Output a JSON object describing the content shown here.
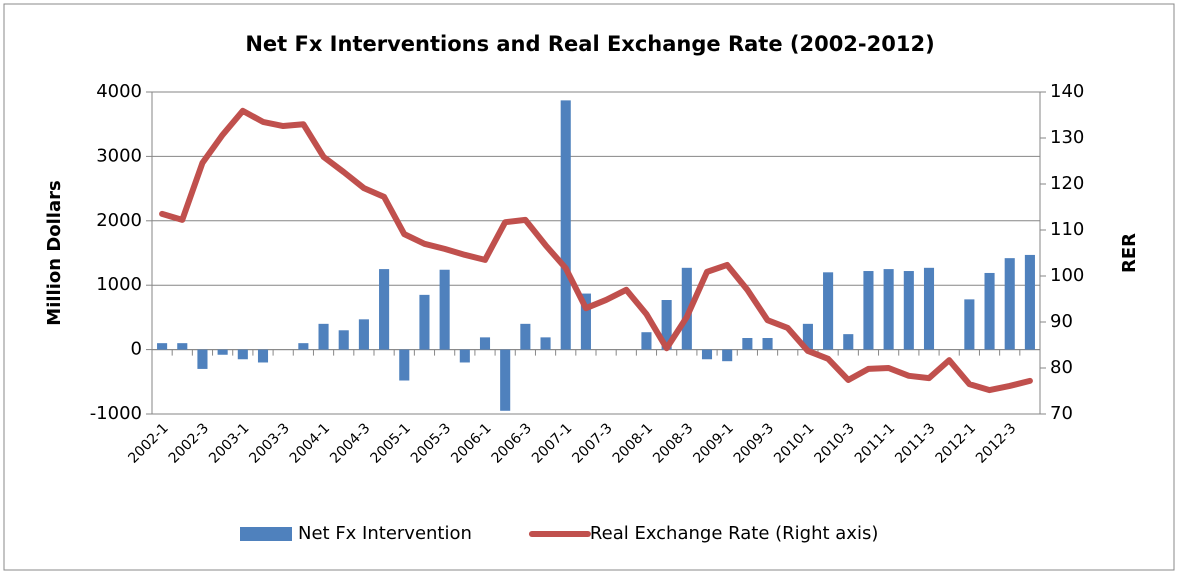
{
  "chart_data": {
    "type": "bar-line",
    "title": "Net Fx Interventions and Real Exchange Rate (2002-2012)",
    "y_label": "Million Dollars",
    "y2_label": "RER",
    "categories": [
      "2002-1",
      null,
      "2002-3",
      null,
      "2003-1",
      null,
      "2003-3",
      null,
      "2004-1",
      null,
      "2004-3",
      null,
      "2005-1",
      null,
      "2005-3",
      null,
      "2006-1",
      null,
      "2006-3",
      null,
      "2007-1",
      null,
      "2007-3",
      null,
      "2008-1",
      null,
      "2008-3",
      null,
      "2009-1",
      null,
      "2009-3",
      null,
      "2010-1",
      null,
      "2010-3",
      null,
      "2011-1",
      null,
      "2011-3",
      null,
      "2012-1",
      null,
      "2012-3",
      null
    ],
    "series": [
      {
        "name": "Net Fx Intervention",
        "type": "bar",
        "color": "#4f81bd",
        "axis": "y",
        "values": [
          100,
          100,
          -300,
          -80,
          -150,
          -200,
          0,
          100,
          400,
          300,
          470,
          1250,
          -480,
          850,
          1240,
          -200,
          190,
          -950,
          400,
          190,
          3870,
          870,
          0,
          0,
          270,
          770,
          1270,
          -150,
          -180,
          180,
          180,
          0,
          400,
          1200,
          240,
          1220,
          1250,
          1220,
          1270,
          0,
          780,
          1190,
          1420,
          1470
        ]
      },
      {
        "name": "Real Exchange Rate (Right axis)",
        "type": "line",
        "color": "#c0504d",
        "axis": "y2",
        "values": [
          113.5,
          112.2,
          124.6,
          130.7,
          135.9,
          133.5,
          132.6,
          133,
          125.9,
          122.6,
          119.1,
          117.2,
          109.1,
          107,
          105.9,
          104.6,
          103.5,
          111.7,
          112.2,
          106.7,
          101.7,
          93,
          94.8,
          97,
          91.7,
          84.3,
          91.1,
          100.9,
          102.4,
          97,
          90.4,
          88.7,
          83.7,
          82,
          77.4,
          79.8,
          80,
          78.3,
          77.8,
          81.7,
          76.5,
          75.2,
          76.1,
          77.2
        ]
      }
    ],
    "ylim": [
      -1000,
      4000
    ],
    "yticks": [
      -1000,
      0,
      1000,
      2000,
      3000,
      4000
    ],
    "y2lim": [
      70,
      140
    ],
    "y2ticks": [
      70,
      80,
      90,
      100,
      110,
      120,
      130,
      140
    ],
    "grid": true,
    "legend": "bottom"
  }
}
